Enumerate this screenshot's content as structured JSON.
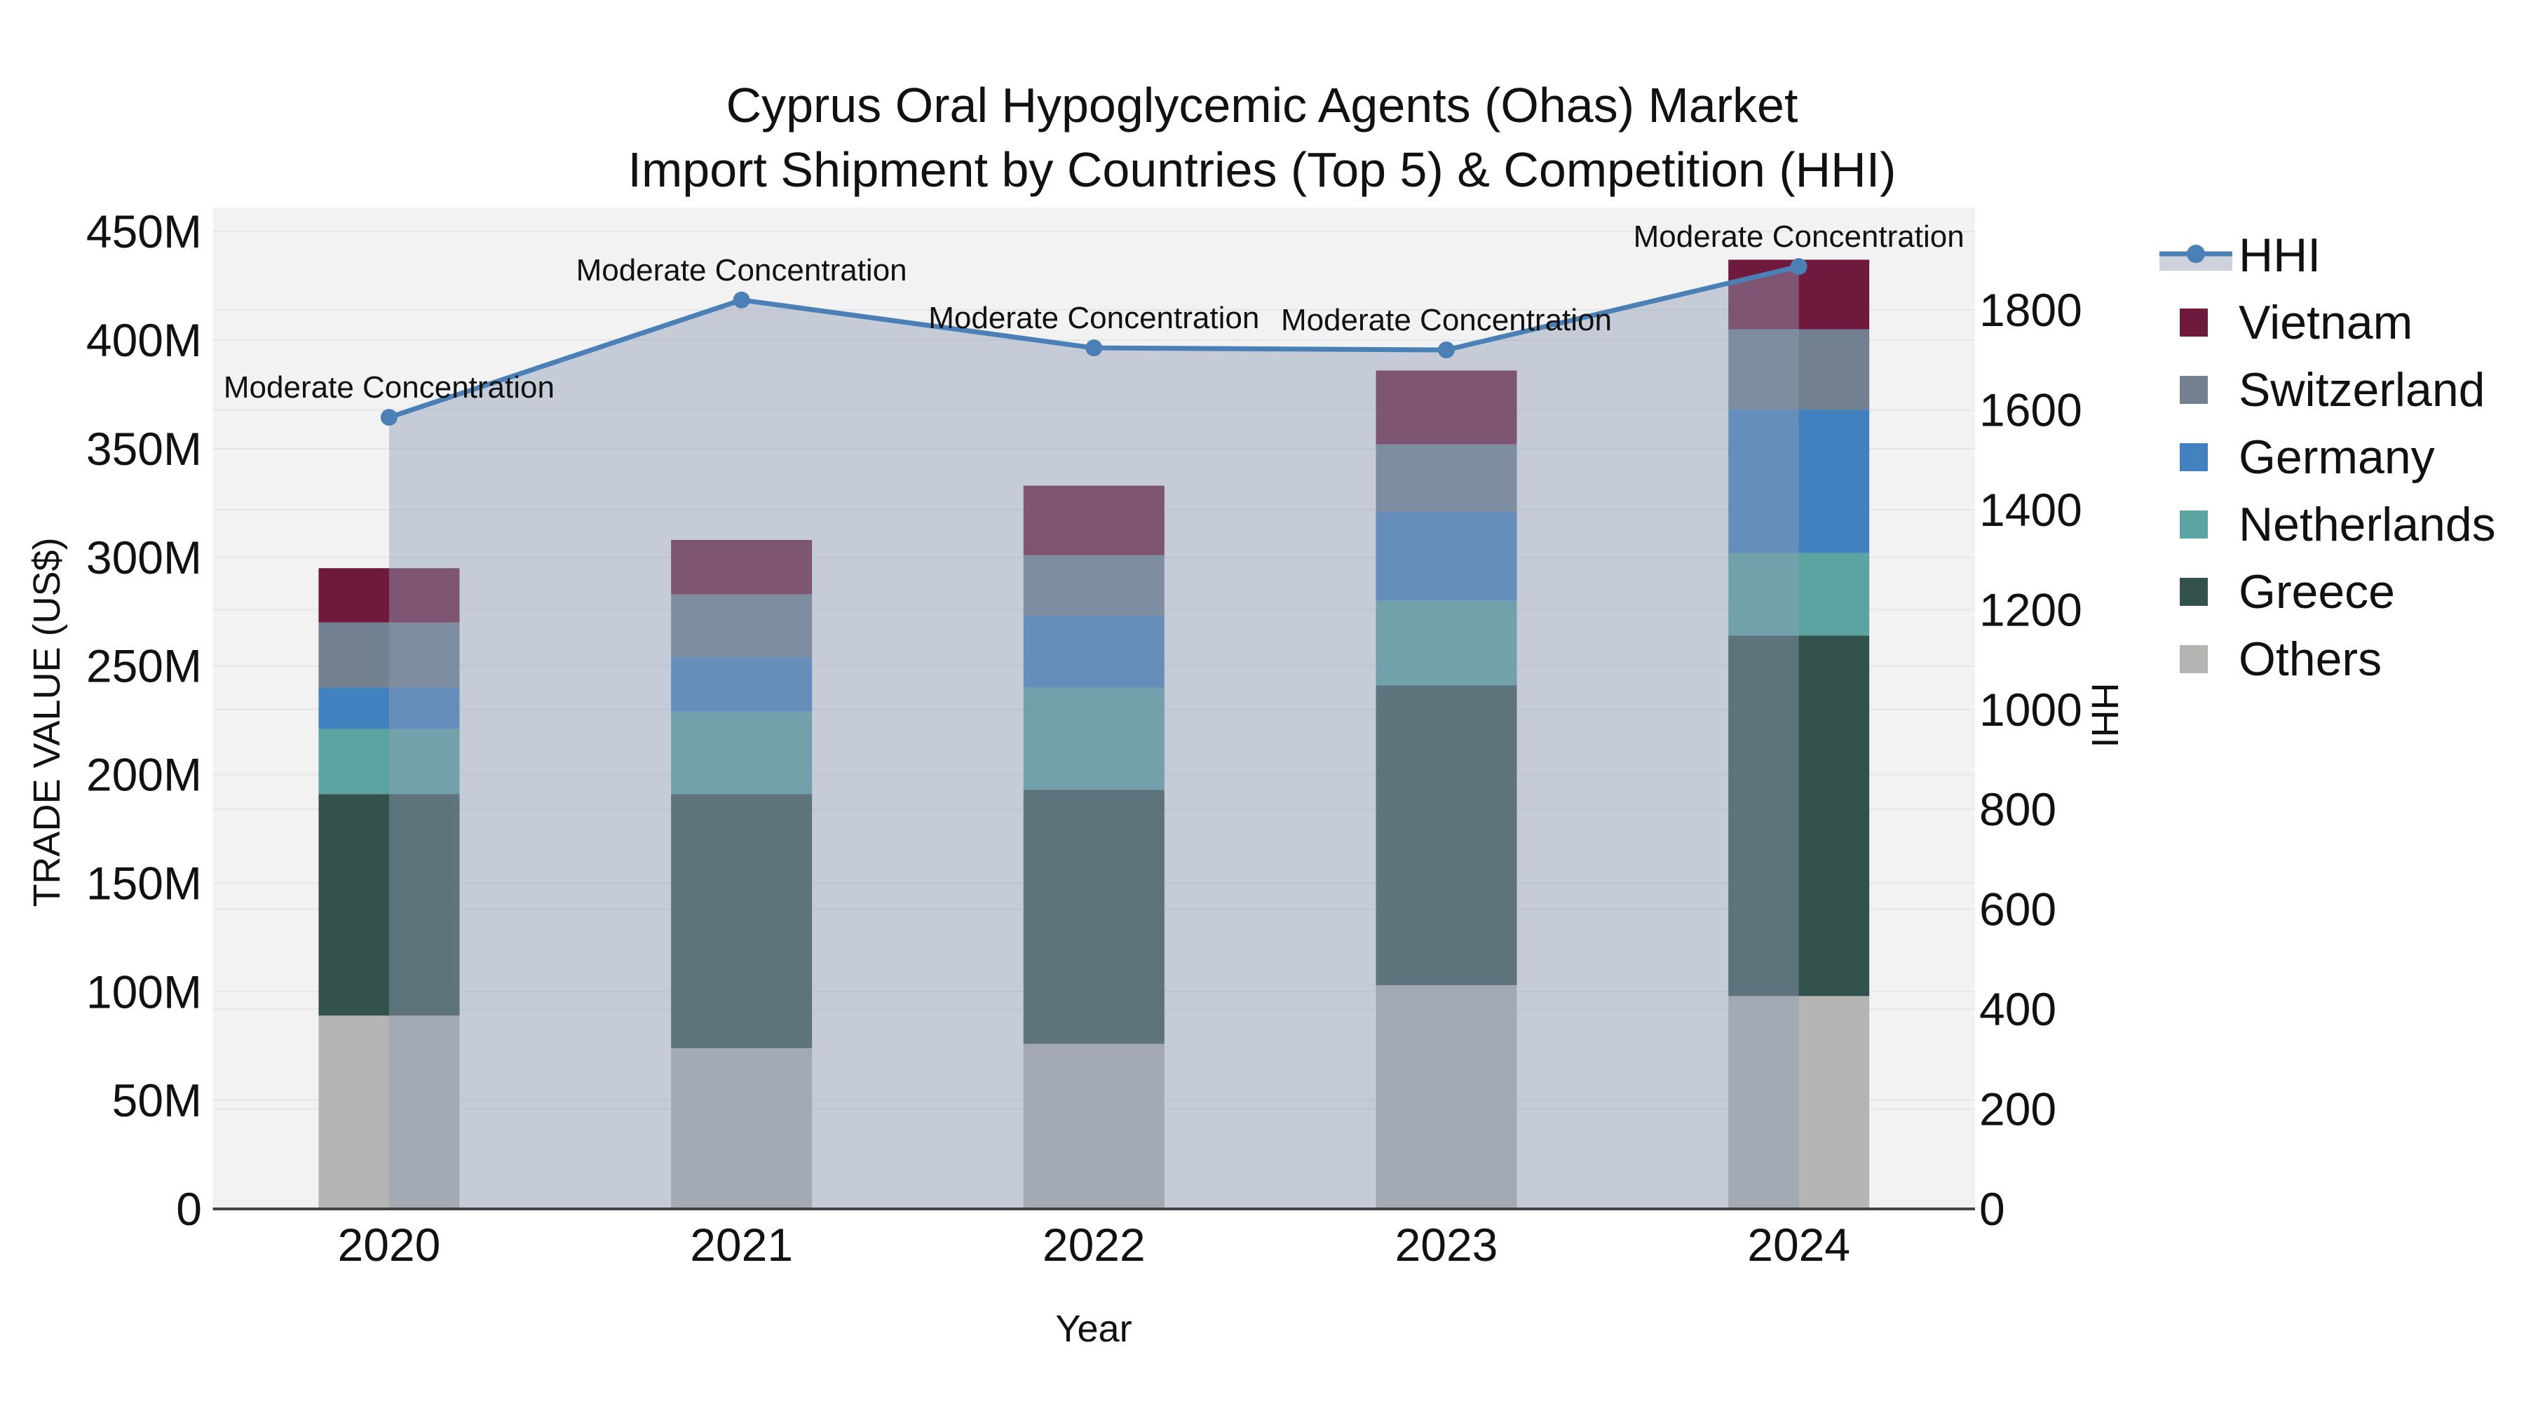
{
  "title": {
    "line1": "Cyprus Oral Hypoglycemic Agents (Ohas) Market",
    "line2": "Import Shipment by Countries (Top 5) & Competition (HHI)"
  },
  "axes": {
    "x": {
      "label": "Year",
      "tick_labels": [
        "2020",
        "2021",
        "2022",
        "2023",
        "2024"
      ]
    },
    "y_left": {
      "label": "TRADE VALUE (US$)",
      "tick_values": [
        0,
        50,
        100,
        150,
        200,
        250,
        300,
        350,
        400,
        450
      ],
      "tick_labels": [
        "0",
        "50M",
        "100M",
        "150M",
        "200M",
        "250M",
        "300M",
        "350M",
        "400M",
        "450M"
      ]
    },
    "y_right": {
      "label": "HHI",
      "tick_values": [
        0,
        200,
        400,
        600,
        800,
        1000,
        1200,
        1400,
        1600,
        1800
      ],
      "tick_labels": [
        "0",
        "200",
        "400",
        "600",
        "800",
        "1000",
        "1200",
        "1400",
        "1600",
        "1800"
      ]
    }
  },
  "legend": {
    "items": [
      {
        "label": "HHI",
        "type": "line",
        "key": "hhi"
      },
      {
        "label": "Vietnam",
        "type": "swatch",
        "key": "vietnam"
      },
      {
        "label": "Switzerland",
        "type": "swatch",
        "key": "switzerland"
      },
      {
        "label": "Germany",
        "type": "swatch",
        "key": "germany"
      },
      {
        "label": "Netherlands",
        "type": "swatch",
        "key": "netherlands"
      },
      {
        "label": "Greece",
        "type": "swatch",
        "key": "greece"
      },
      {
        "label": "Others",
        "type": "swatch",
        "key": "others"
      }
    ]
  },
  "colors": {
    "hhi": "#4a80b5",
    "hhi_fill": "rgba(144,158,184,0.46)",
    "hhi_legend_band": "#cdd2dd",
    "vietnam": "#6f1a3c",
    "switzerland": "#72808f",
    "germany": "#4181bf",
    "netherlands": "#5ca4a1",
    "greece": "#34524d",
    "others": "#b4b5b2",
    "plot_bg": "#f2f2f3",
    "grid": "#e4e5e8",
    "spine": "#444444",
    "text": "#111111"
  },
  "chart_data": {
    "type": "combo: stacked bar (left axis) + line with area fill (right axis)",
    "title": "Cyprus Oral Hypoglycemic Agents (Ohas) Market — Import Shipment by Countries (Top 5) & Competition (HHI)",
    "xlabel": "Year",
    "ylabel_left": "TRADE VALUE (US$)",
    "ylabel_right": "HHI",
    "x": [
      2020,
      2021,
      2022,
      2023,
      2024
    ],
    "bar_value_unit": "million US$",
    "series": [
      {
        "name": "Others",
        "key": "others",
        "values": [
          89,
          74,
          76,
          103,
          98
        ]
      },
      {
        "name": "Greece",
        "key": "greece",
        "values": [
          102,
          117,
          117,
          138,
          166
        ]
      },
      {
        "name": "Netherlands",
        "key": "netherlands",
        "values": [
          30,
          38,
          47,
          39,
          38
        ]
      },
      {
        "name": "Germany",
        "key": "germany",
        "values": [
          19,
          25,
          33,
          41,
          66
        ]
      },
      {
        "name": "Switzerland",
        "key": "switzerland",
        "values": [
          30,
          29,
          28,
          31,
          37
        ]
      },
      {
        "name": "Vietnam",
        "key": "vietnam",
        "values": [
          25,
          25,
          32,
          34,
          32
        ]
      }
    ],
    "bar_totals": [
      295,
      308,
      333,
      386,
      437
    ],
    "line_series": {
      "name": "HHI",
      "axis": "right",
      "values": [
        1585,
        1820,
        1724,
        1720,
        1887
      ]
    },
    "annotations": [
      "Moderate Concentration",
      "Moderate Concentration",
      "Moderate Concentration",
      "Moderate Concentration",
      "Moderate Concentration"
    ],
    "y_left_range": [
      0,
      461
    ],
    "y_right_range": [
      0,
      2006
    ],
    "grid": true,
    "legend_position": "right",
    "stack_order_bottom_to_top": [
      "Others",
      "Greece",
      "Netherlands",
      "Germany",
      "Switzerland",
      "Vietnam"
    ]
  }
}
